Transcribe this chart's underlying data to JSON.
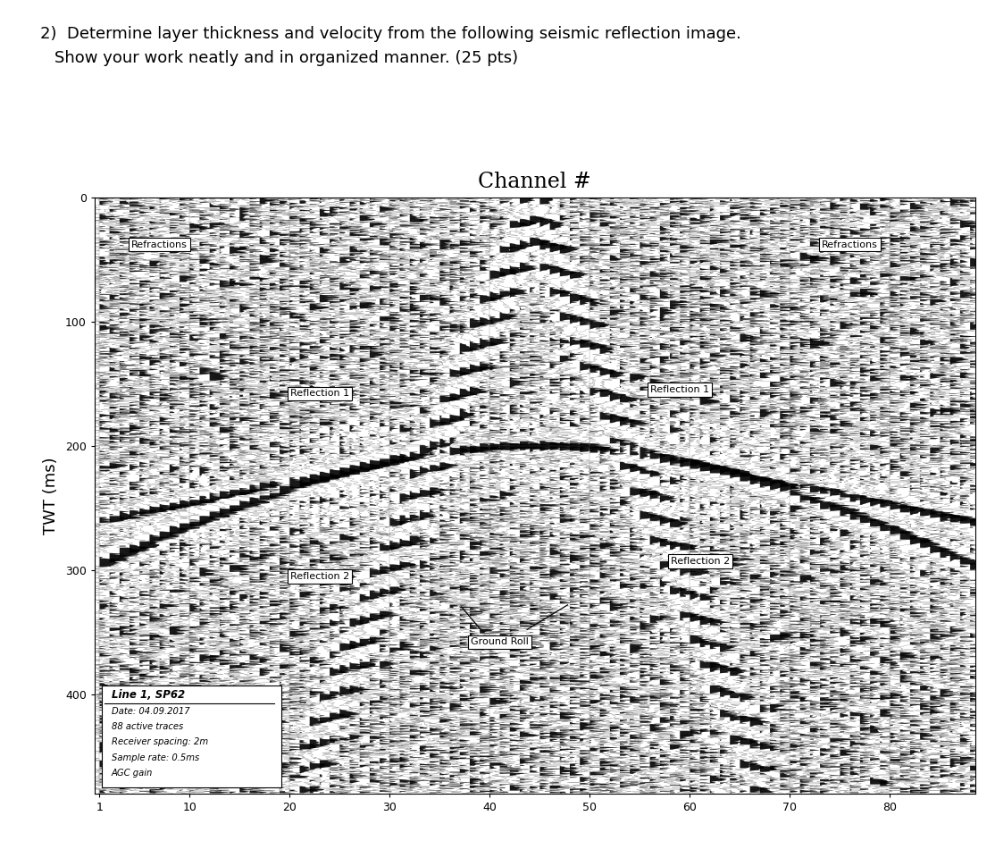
{
  "title_question": "2)  Determine layer thickness and velocity from the following seismic reflection image.",
  "title_question2": "     Show your work neatly and in organized manner. (25 pts)",
  "plot_title": "Channel #",
  "ylabel": "TWT (ms)",
  "xmin": 1,
  "xmax": 88,
  "ymin": 0,
  "ymax": 480,
  "xticks": [
    1,
    10,
    20,
    30,
    40,
    50,
    60,
    70,
    80
  ],
  "yticks": [
    0,
    100,
    200,
    300,
    400
  ],
  "background_color": "#ffffff",
  "grid_color": "#666666",
  "n_channels": 88,
  "seed": 42,
  "info_box_title": "Line 1, SP62",
  "info_box_lines": [
    "Date: 04.09.2017",
    "88 active traces",
    "Receiver spacing: 2m",
    "Sample rate: 0.5ms",
    "AGC gain"
  ]
}
